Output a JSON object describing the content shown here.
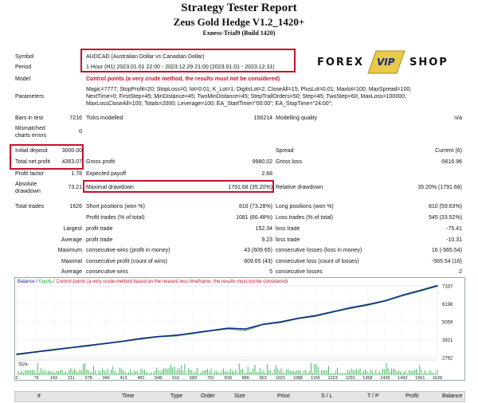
{
  "report": {
    "title": "Strategy Tester Report",
    "ea_name": "Zeus Gold Hedge V1.2_1420+",
    "server": "Exness-Trial9 (Build 1420)"
  },
  "logo": {
    "left": "FOREX",
    "badge": "VIP",
    "right": "SHOP"
  },
  "settings": {
    "symbol_label": "Symbol",
    "symbol_value": "AUDCAD (Australian Dollar vs Canadian Dollar)",
    "period_label": "Period",
    "period_value": "1 Hour (H1) 2023.01.01 22:00 - 2023.12.29 21:00 (2023.01.01 - 2023.12.31)",
    "model_label": "Model",
    "model_value": "Control points (a very crude method, the results must not be considered)",
    "params_label": "Parameters",
    "params_lines": [
      "Magic=7777; StopProfit=20; StopLoss=0; lot=0.01; K_Lot=1; DigitsLot=2; CloseAll=15; PlusLot=0.01; Maxlot=100; MaxSpread=100;",
      "NextTime=0; FirstStep=45; MinDistance=45; TwoMinDistance=45; StepTrallOrders=50; Step=45; TwoStep=60; MaxLoss=100000;",
      "MaxLossCloseAll=100; Totals=2000; Leverage=100; EA_StartTime=\"00:00\"; EA_StopTime=\"24:00\";"
    ]
  },
  "stats": {
    "bars_label": "Bars in test",
    "bars_value": "7216",
    "ticks_label": "Ticks modelled",
    "ticks_value": "156214",
    "quality_label": "Modelling quality",
    "quality_value": "n/a",
    "mismatch_label_1": "Mismatched",
    "mismatch_label_2": "charts errors",
    "mismatch_value": "0",
    "deposit_label": "Initial deposit",
    "deposit_value": "3000.00",
    "spread_label": "Spread",
    "spread_value": "Current (6)",
    "net_label": "Total net profit",
    "net_value": "4363.07",
    "gross_profit_label": "Gross profit",
    "gross_profit_value": "9980.02",
    "gross_loss_label": "Gross loss",
    "gross_loss_value": "-5616.96",
    "pf_label": "Profit factor",
    "pf_value": "1.78",
    "payoff_label": "Expected payoff",
    "payoff_value": "2.68",
    "abs_dd_label_1": "Absolute",
    "abs_dd_label_2": "drawdown",
    "abs_dd_value": "73.21",
    "max_dd_label": "Maximal drawdown",
    "max_dd_value": "1791.68 (35.20%)",
    "rel_dd_label": "Relative drawdown",
    "rel_dd_value": "35.20% (1791.68)",
    "trades_label": "Total trades",
    "trades_value": "1626",
    "short_label": "Short positions (won %)",
    "short_value": "816 (73.28%)",
    "long_label": "Long positions (won %)",
    "long_value": "810 (59.63%)",
    "profit_trades_label": "Profit trades (% of total)",
    "profit_trades_value": "1081 (66.48%)",
    "loss_trades_label": "Loss trades (% of total)",
    "loss_trades_value": "545 (33.52%)",
    "largest_label": "Largest",
    "largest_profit_label": "profit trade",
    "largest_profit_value": "152.34",
    "largest_loss_label": "loss trade",
    "largest_loss_value": "-75.41",
    "average_label": "Average",
    "average_profit_label": "profit trade",
    "average_profit_value": "9.23",
    "average_loss_label": "loss trade",
    "average_loss_value": "-10.31",
    "maximum_label": "Maximum",
    "max_wins_label": "consecutive wins (profit in money)",
    "max_wins_value": "43 (609.65)",
    "max_losses_label": "consecutive losses (loss in money)",
    "max_losses_value": "16 (-565.54)",
    "maximal_label": "Maximal",
    "maximal_profit_label": "consecutive profit (count of wins)",
    "maximal_profit_value": "609.65 (43)",
    "maximal_loss_label": "consecutive loss (count of losses)",
    "maximal_loss_value": "-565.54 (16)",
    "avg_label": "Average",
    "avg_wins_label": "consecutive wins",
    "avg_wins_value": "5",
    "avg_losses_label": "consecutive losses",
    "avg_losses_value": "2"
  },
  "chart_legend": {
    "balance": "Balance",
    "sep1": " / ",
    "equity": "Equity",
    "sep2": " / ",
    "note": "Control points (a very crude method based on the nearest less timeframe, the results must not be considered)"
  },
  "chart_data": {
    "type": "line",
    "y_ticks": [
      "7337",
      "6198",
      "5059",
      "3921",
      "2782"
    ],
    "size_label": "Size",
    "x_ticks": [
      "0",
      "76",
      "143",
      "211",
      "278",
      "346",
      "413",
      "481",
      "548",
      "616",
      "683",
      "751",
      "818",
      "886",
      "953",
      "1021",
      "1088",
      "1156",
      "1223",
      "1291",
      "1358",
      "1426",
      "1493",
      "1561",
      "1628"
    ],
    "x": [
      0,
      76,
      143,
      211,
      278,
      346,
      413,
      481,
      548,
      616,
      683,
      751,
      818,
      886,
      953,
      1021,
      1088,
      1156,
      1223,
      1291,
      1358,
      1426,
      1493,
      1561,
      1628
    ],
    "series": [
      {
        "name": "Balance",
        "values": [
          3000,
          3150,
          3290,
          3420,
          3560,
          3690,
          3830,
          4000,
          4120,
          4200,
          4350,
          4500,
          4650,
          4600,
          4900,
          5050,
          5280,
          5450,
          5700,
          5950,
          6150,
          6400,
          6750,
          7050,
          7363
        ]
      },
      {
        "name": "Equity",
        "values": [
          2950,
          3120,
          3250,
          3390,
          3510,
          3660,
          3800,
          3950,
          4090,
          4150,
          4300,
          4470,
          4600,
          4500,
          4870,
          5000,
          5240,
          5400,
          5660,
          5900,
          6100,
          6360,
          6700,
          7000,
          7300
        ]
      }
    ],
    "ylim": [
      2782,
      7337
    ],
    "colors": {
      "balance": "#1a2a8a",
      "equity": "#1aa83a",
      "volume": "#2bb34a"
    }
  },
  "table_headers": [
    "#",
    "Time",
    "Type",
    "Order",
    "Size",
    "Price",
    "S / L",
    "T / P",
    "Profit",
    "Balance"
  ]
}
